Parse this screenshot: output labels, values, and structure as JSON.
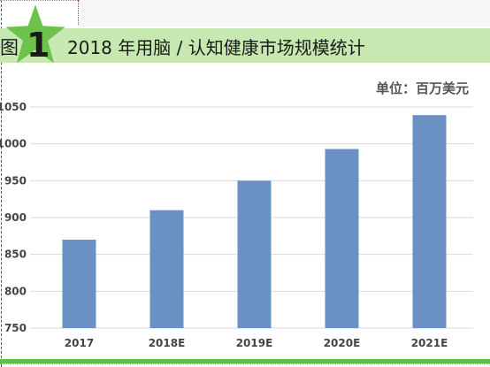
{
  "figure": {
    "prefix": "图",
    "number": "1",
    "title": "2018 年用脑 / 认知健康市场规模统计"
  },
  "colors": {
    "header_background": "#c7e9b1",
    "star": "#6cc24a",
    "bar": "#6a90c4",
    "gridline": "#d9d9d9",
    "bottom_rule": "#5ec04a"
  },
  "chart_data": {
    "type": "bar",
    "title": "2018 年用脑 / 认知健康市场规模统计",
    "unit": "单位：百万美元",
    "xlabel": "",
    "ylabel": "",
    "categories": [
      "2017",
      "2018E",
      "2019E",
      "2020E",
      "2021E"
    ],
    "values": [
      870,
      910,
      950,
      993,
      1039
    ],
    "ylim": [
      750,
      1050
    ],
    "yticks": [
      750,
      800,
      850,
      900,
      950,
      1000,
      1050
    ],
    "grid": true,
    "legend": "none"
  }
}
